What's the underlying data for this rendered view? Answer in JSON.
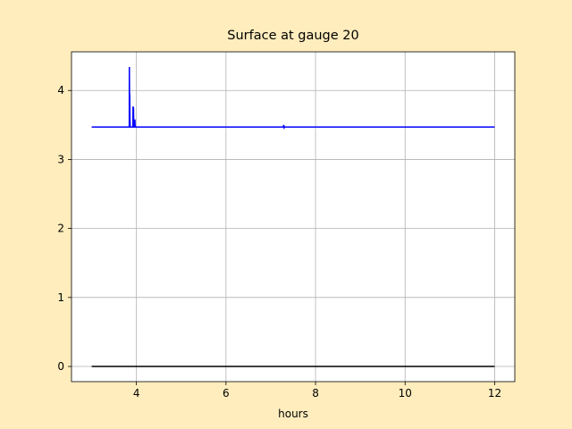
{
  "chart_data": {
    "type": "line",
    "title": "Surface at gauge 20",
    "x_label": "hours",
    "series": [
      {
        "color": "#0000ff",
        "x": [
          3,
          3.84,
          3.842,
          3.846,
          3.85,
          3.855,
          3.86,
          3.92,
          3.925,
          3.93,
          3.935,
          3.94,
          3.96,
          3.965,
          3.97,
          3.975,
          7.28,
          7.29,
          7.3,
          7.31,
          12
        ],
        "values": [
          3.47,
          3.47,
          4.34,
          3.9,
          3.95,
          3.6,
          3.47,
          3.47,
          3.77,
          3.6,
          3.75,
          3.47,
          3.47,
          3.58,
          3.5,
          3.47,
          3.47,
          3.5,
          3.46,
          3.47,
          3.47
        ]
      },
      {
        "color": "#000000",
        "x": [
          3,
          12
        ],
        "values": [
          0,
          0
        ]
      }
    ],
    "xlim": [
      2.55,
      12.45
    ],
    "ylim": [
      -0.22,
      4.56
    ],
    "xticks": [
      4,
      6,
      8,
      10,
      12
    ],
    "yticks": [
      0,
      1,
      2,
      3,
      4
    ],
    "grid": true
  }
}
